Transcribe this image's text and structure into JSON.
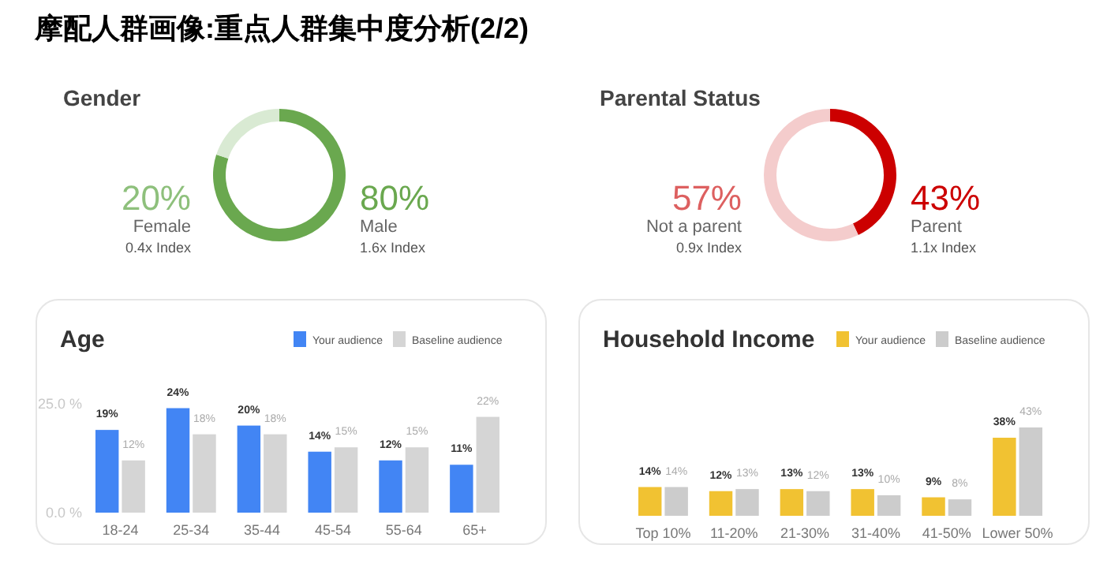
{
  "chart_data": [
    {
      "type": "other",
      "title": "摩配人群画像:重点人群集中度分析(2/2)"
    },
    {
      "type": "donut",
      "title": "Gender",
      "categories": [
        "Female",
        "Male"
      ],
      "values": [
        20,
        80
      ],
      "colors": [
        "#d9ead3",
        "#6aa84f"
      ],
      "value_labels": [
        "20%",
        "80%"
      ],
      "annotations": [
        "0.4x Index",
        "1.6x Index"
      ]
    },
    {
      "type": "donut",
      "title": "Parental Status",
      "categories": [
        "Not a parent",
        "Parent"
      ],
      "values": [
        57,
        43
      ],
      "colors": [
        "#f4cccc",
        "#cc0000"
      ],
      "value_labels": [
        "57%",
        "43%"
      ],
      "annotations": [
        "0.9x Index",
        "1.1x Index"
      ]
    },
    {
      "type": "bar",
      "title": "Age",
      "categories": [
        "18-24",
        "25-34",
        "35-44",
        "45-54",
        "55-64",
        "65+"
      ],
      "ylim": [
        0,
        25
      ],
      "yticks": [
        {
          "value": 0,
          "label": "0.0 %"
        },
        {
          "value": 25,
          "label": "25.0 %"
        }
      ],
      "legend": "top right",
      "series": [
        {
          "name": "Your audience",
          "color": "#4285f4",
          "values": [
            19,
            24,
            20,
            14,
            12,
            11
          ],
          "value_labels": [
            "19%",
            "24%",
            "20%",
            "14%",
            "12%",
            "11%"
          ]
        },
        {
          "name": "Baseline audience",
          "color": "#d5d5d5",
          "values": [
            12,
            18,
            18,
            15,
            15,
            22
          ],
          "value_labels": [
            "12%",
            "18%",
            "18%",
            "15%",
            "15%",
            "22%"
          ]
        }
      ]
    },
    {
      "type": "bar",
      "title": "Household Income",
      "categories": [
        "Top 10%",
        "11-20%",
        "21-30%",
        "31-40%",
        "41-50%",
        "Lower 50%"
      ],
      "tick_labels": "x",
      "legend": "top right",
      "series": [
        {
          "name": "Your audience",
          "color": "#f1c232",
          "values": [
            14,
            12,
            13,
            13,
            9,
            38
          ],
          "value_labels": [
            "14%",
            "12%",
            "13%",
            "13%",
            "9%",
            "38%"
          ]
        },
        {
          "name": "Baseline audience",
          "color": "#cccccc",
          "values": [
            14,
            13,
            12,
            10,
            8,
            43
          ],
          "value_labels": [
            "14%",
            "13%",
            "12%",
            "10%",
            "8%",
            "43%"
          ]
        }
      ]
    }
  ]
}
